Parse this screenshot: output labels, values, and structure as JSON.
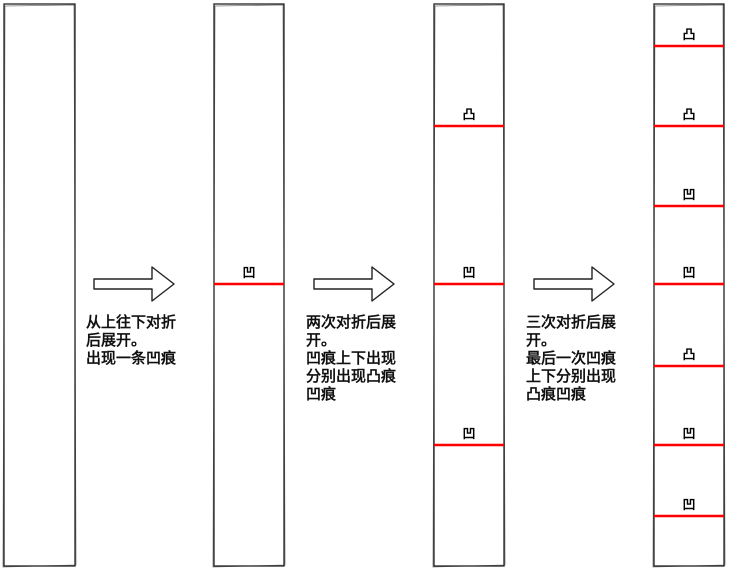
{
  "colors": {
    "strip_stroke": "#222222",
    "crease": "#ff0000",
    "arrow_stroke": "#222222"
  },
  "strips": [
    {
      "creases": []
    },
    {
      "creases": [
        {
          "mark": "凹"
        }
      ]
    },
    {
      "creases": [
        {
          "mark": "凸"
        },
        {
          "mark": "凹"
        },
        {
          "mark": "凹"
        }
      ]
    },
    {
      "creases": [
        {
          "mark": "凸"
        },
        {
          "mark": "凸"
        },
        {
          "mark": "凹"
        },
        {
          "mark": "凹"
        },
        {
          "mark": "凸"
        },
        {
          "mark": "凹"
        },
        {
          "mark": "凹"
        }
      ]
    }
  ],
  "steps": [
    {
      "caption": "从上往下对折\n后展开。\n出现一条凹痕"
    },
    {
      "caption": "两次对折后展\n开。\n凹痕上下出现\n分别出现凸痕\n凹痕"
    },
    {
      "caption": "三次对折后展\n开。\n最后一次凹痕\n上下分别出现\n凸痕凹痕"
    }
  ]
}
